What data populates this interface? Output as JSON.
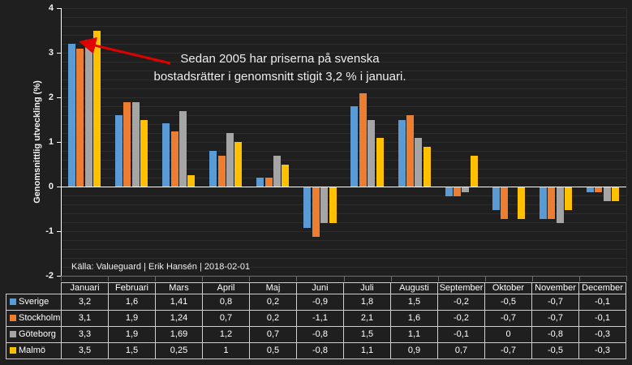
{
  "colors": {
    "background": "#1F1F1F",
    "grid": "#2D2D2D",
    "axis": "#FFFFFF",
    "table_border": "#CFCFCF",
    "text": "#FFFFFF",
    "arrow": "#E00000"
  },
  "chart_data": {
    "type": "bar",
    "title": "",
    "xlabel": "",
    "ylabel": "Genomsnittlig utveckling (%)",
    "ylim": [
      -2,
      4
    ],
    "ytick_values": [
      4,
      3,
      2,
      1,
      0,
      -1,
      -2
    ],
    "ytick_labels": [
      "4",
      "3",
      "2",
      "1",
      "0",
      "-1",
      "-2"
    ],
    "minor_grid_step": 0.2,
    "grid": true,
    "legend_position": "table-left-column",
    "categories": [
      "Januari",
      "Februari",
      "Mars",
      "April",
      "Maj",
      "Juni",
      "Juli",
      "Augusti",
      "September",
      "Oktober",
      "November",
      "December"
    ],
    "series": [
      {
        "name": "Sverige",
        "color": "#5B9BD5",
        "values": [
          3.2,
          1.6,
          1.41,
          0.8,
          0.2,
          -0.9,
          1.8,
          1.5,
          -0.2,
          -0.5,
          -0.7,
          -0.1
        ],
        "labels": [
          "3,2",
          "1,6",
          "1,41",
          "0,8",
          "0,2",
          "-0,9",
          "1,8",
          "1,5",
          "-0,2",
          "-0,5",
          "-0,7",
          "-0,1"
        ]
      },
      {
        "name": "Stockholm",
        "color": "#ED7D31",
        "values": [
          3.1,
          1.9,
          1.24,
          0.7,
          0.2,
          -1.1,
          2.1,
          1.6,
          -0.2,
          -0.7,
          -0.7,
          -0.1
        ],
        "labels": [
          "3,1",
          "1,9",
          "1,24",
          "0,7",
          "0,2",
          "-1,1",
          "2,1",
          "1,6",
          "-0,2",
          "-0,7",
          "-0,7",
          "-0,1"
        ]
      },
      {
        "name": "Göteborg",
        "color": "#A5A5A5",
        "values": [
          3.3,
          1.9,
          1.69,
          1.2,
          0.7,
          -0.8,
          1.5,
          1.1,
          -0.1,
          0,
          -0.8,
          -0.3
        ],
        "labels": [
          "3,3",
          "1,9",
          "1,69",
          "1,2",
          "0,7",
          "-0,8",
          "1,5",
          "1,1",
          "-0,1",
          "0",
          "-0,8",
          "-0,3"
        ]
      },
      {
        "name": "Malmö",
        "color": "#FFC000",
        "values": [
          3.5,
          1.5,
          0.25,
          1,
          0.5,
          -0.8,
          1.1,
          0.9,
          0.7,
          -0.7,
          -0.5,
          -0.3
        ],
        "labels": [
          "3,5",
          "1,5",
          "0,25",
          "1",
          "0,5",
          "-0,8",
          "1,1",
          "0,9",
          "0,7",
          "-0,7",
          "-0,5",
          "-0,3"
        ]
      }
    ]
  },
  "annotation": {
    "line1": "Sedan 2005 har priserna på svenska",
    "line2": "bostadsrätter i genomsnitt stigit 3,2 % i januari."
  },
  "source": {
    "text": "Källa: Valueguard | Erik Hansén | 2018-02-01"
  }
}
